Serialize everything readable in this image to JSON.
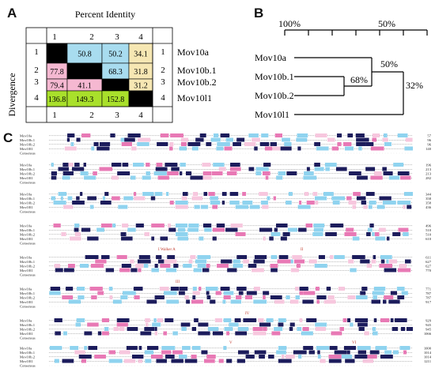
{
  "panels": {
    "a": "A",
    "b": "B",
    "c": "C"
  },
  "panel_a": {
    "title": "Percent Identity",
    "side_label": "Divergence",
    "col_headers": [
      "1",
      "2",
      "3",
      "4"
    ],
    "row_numbers": [
      "1",
      "2",
      "3",
      "4"
    ],
    "genes": [
      "Mov10a",
      "Mov10b.1",
      "Mov10b.2",
      "Mov10l1"
    ],
    "cells": [
      [
        {
          "v": "",
          "c": "#000000"
        },
        {
          "v": "50.8",
          "c": "#a8dcef"
        },
        {
          "v": "50.2",
          "c": "#a8dcef"
        },
        {
          "v": "34.1",
          "c": "#f6e7b3"
        }
      ],
      [
        {
          "v": "77.8",
          "c": "#f5b8d1"
        },
        {
          "v": "",
          "c": "#000000"
        },
        {
          "v": "68.3",
          "c": "#a8dcef"
        },
        {
          "v": "31.8",
          "c": "#f6e7b3"
        }
      ],
      [
        {
          "v": "79.4",
          "c": "#f5b8d1"
        },
        {
          "v": "41.1",
          "c": "#f5b8d1"
        },
        {
          "v": "",
          "c": "#000000"
        },
        {
          "v": "31.2",
          "c": "#f6e7b3"
        }
      ],
      [
        {
          "v": "136.8",
          "c": "#a9e02b"
        },
        {
          "v": "149.3",
          "c": "#a9e02b"
        },
        {
          "v": "152.8",
          "c": "#a9e02b"
        },
        {
          "v": "",
          "c": "#000000"
        }
      ]
    ]
  },
  "panel_b": {
    "scale_labels": [
      "100%",
      "50%"
    ],
    "leaves": [
      "Mov10a",
      "Mov10b.1",
      "Mov10b.2",
      "Mov10l1"
    ],
    "node_labels": [
      "50%",
      "68%",
      "32%"
    ]
  },
  "panel_c": {
    "sequence_names": [
      "Mov10a",
      "Mov10b.1",
      "Mov10b.2",
      "Mov10l1",
      "Consensus"
    ],
    "row_end_numbers": [
      [
        "57",
        "96",
        "96",
        "140"
      ],
      [
        "196",
        "213",
        "213",
        "282"
      ],
      [
        "344",
        "358",
        "358",
        "436"
      ],
      [
        "496",
        "510",
        "510",
        "610"
      ],
      [
        "611",
        "627",
        "627",
        "770"
      ],
      [
        "771",
        "787",
        "787",
        "917"
      ],
      [
        "929",
        "945",
        "945",
        "1066"
      ],
      [
        "1000",
        "1014",
        "1014",
        "1211"
      ]
    ],
    "motif_labels": [
      "I Walker A",
      "II",
      "III",
      "IV",
      "V",
      "VI"
    ],
    "colors": {
      "identical": "#1c1c5c",
      "high": "#e879b5",
      "medium": "#8fd3ef",
      "low": "#f7c7de"
    }
  }
}
